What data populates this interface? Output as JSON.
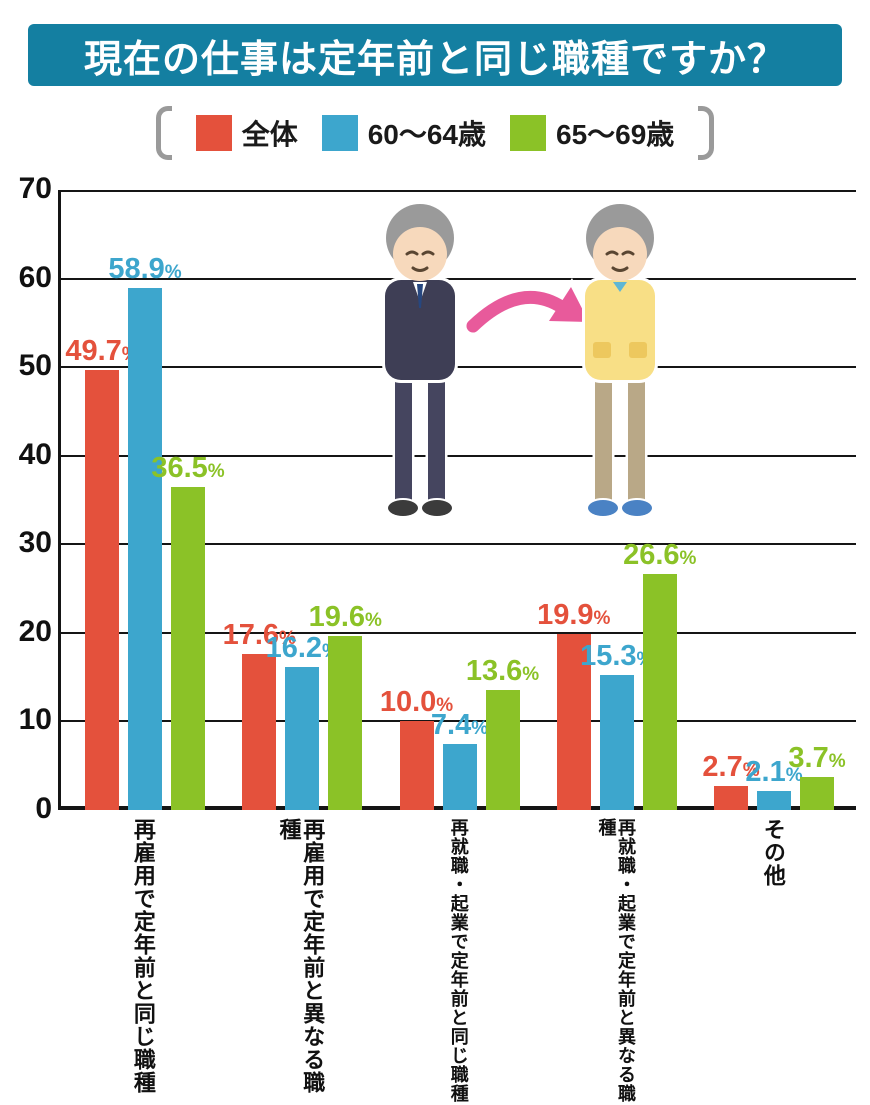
{
  "title": "現在の仕事は定年前と同じ職種ですか？",
  "colors": {
    "title_bg": "#147fa1",
    "title_text": "#ffffff",
    "grid": "#151515",
    "bracket": "#9a9a9a",
    "arrow": "#e85a9b"
  },
  "legend": {
    "items": [
      {
        "label": "全体",
        "color": "#e4513c"
      },
      {
        "label": "60～64歳",
        "color": "#3da6cd"
      },
      {
        "label": "65～69歳",
        "color": "#8bc227"
      }
    ]
  },
  "chart_data": {
    "type": "bar",
    "title": "現在の仕事は定年前と同じ職種ですか？",
    "categories": [
      "再雇用で定年前と同じ職種",
      "再雇用で定年前と異なる職種",
      "再就職・起業で定年前と同じ職種",
      "再就職・起業で定年前と異なる職種",
      "その他"
    ],
    "series": [
      {
        "name": "全体",
        "color": "#e4513c",
        "values": [
          49.7,
          17.6,
          10.0,
          19.9,
          2.7
        ]
      },
      {
        "name": "60～64歳",
        "color": "#3da6cd",
        "values": [
          58.9,
          16.2,
          7.4,
          15.3,
          2.1
        ]
      },
      {
        "name": "65～69歳",
        "color": "#8bc227",
        "values": [
          36.5,
          19.6,
          13.6,
          26.6,
          3.7
        ]
      }
    ],
    "ylim": [
      0,
      70
    ],
    "yticks": [
      0,
      10,
      20,
      30,
      40,
      50,
      60,
      70
    ],
    "value_unit": "%",
    "grid": true,
    "legend_position": "top"
  }
}
